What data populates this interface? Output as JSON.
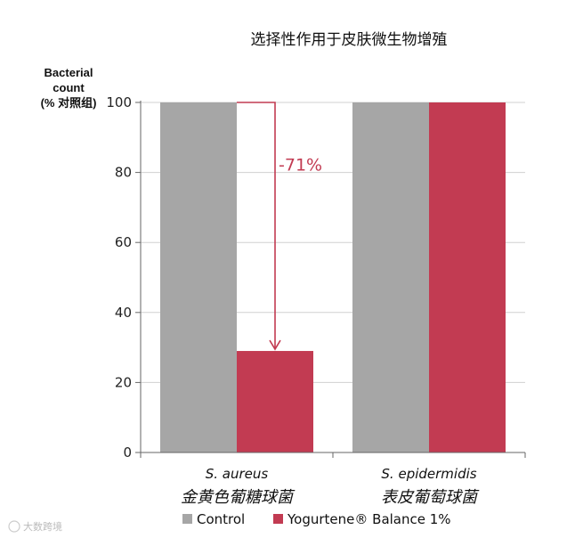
{
  "chart_data": {
    "type": "bar",
    "title": "选择性作用于皮肤微生物增殖",
    "ylabel_lines": [
      "Bacterial",
      "count",
      "(% 对照组)"
    ],
    "ylim": [
      0,
      100
    ],
    "yticks": [
      0,
      20,
      40,
      60,
      80,
      100
    ],
    "grid": true,
    "categories": [
      {
        "name": "S. aureus",
        "name_zh": "金黄色葡糖球菌"
      },
      {
        "name": "S. epidermidis",
        "name_zh": "表皮葡萄球菌"
      }
    ],
    "series": [
      {
        "name": "Control",
        "color": "#a6a6a6",
        "values": [
          100,
          100
        ]
      },
      {
        "name": "Yogurtene® Balance 1%",
        "color": "#c23b52",
        "values": [
          29,
          100
        ]
      }
    ],
    "annotation": {
      "text": "-71%",
      "category_index": 0,
      "from": 100,
      "to": 29,
      "color": "#c23b52"
    },
    "legend_position": "bottom"
  },
  "watermark": "大数跨境"
}
